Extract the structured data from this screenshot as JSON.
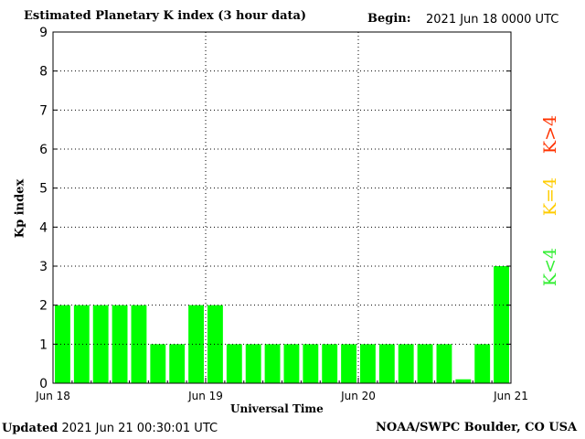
{
  "chart_data": {
    "type": "bar",
    "title": "Estimated Planetary K index (3 hour data)",
    "begin_label": "Begin:",
    "begin_value": "2021 Jun 18 0000 UTC",
    "xlabel": "Universal Time",
    "ylabel": "Kp index",
    "ylim": [
      0,
      9
    ],
    "yticks": [
      "0",
      "1",
      "2",
      "3",
      "4",
      "5",
      "6",
      "7",
      "8",
      "9"
    ],
    "xticks": [
      "Jun 18",
      "Jun 19",
      "Jun 20",
      "Jun 21"
    ],
    "grid": true,
    "bar_color": "#00ff00",
    "values": [
      2,
      2,
      2,
      2,
      2,
      1,
      1,
      2,
      2,
      1,
      1,
      1,
      1,
      1,
      1,
      1,
      1,
      1,
      1,
      1,
      1,
      0.1,
      1,
      3
    ],
    "legend": [
      {
        "label": "K<4",
        "color": "#33ee33"
      },
      {
        "label": "K=4",
        "color": "#ffcc00"
      },
      {
        "label": "K>4",
        "color": "#ff3300"
      }
    ]
  },
  "footer": {
    "updated_label": "Updated",
    "updated_value": "2021 Jun 21 00:30:01 UTC",
    "credit": "NOAA/SWPC Boulder, CO USA"
  }
}
